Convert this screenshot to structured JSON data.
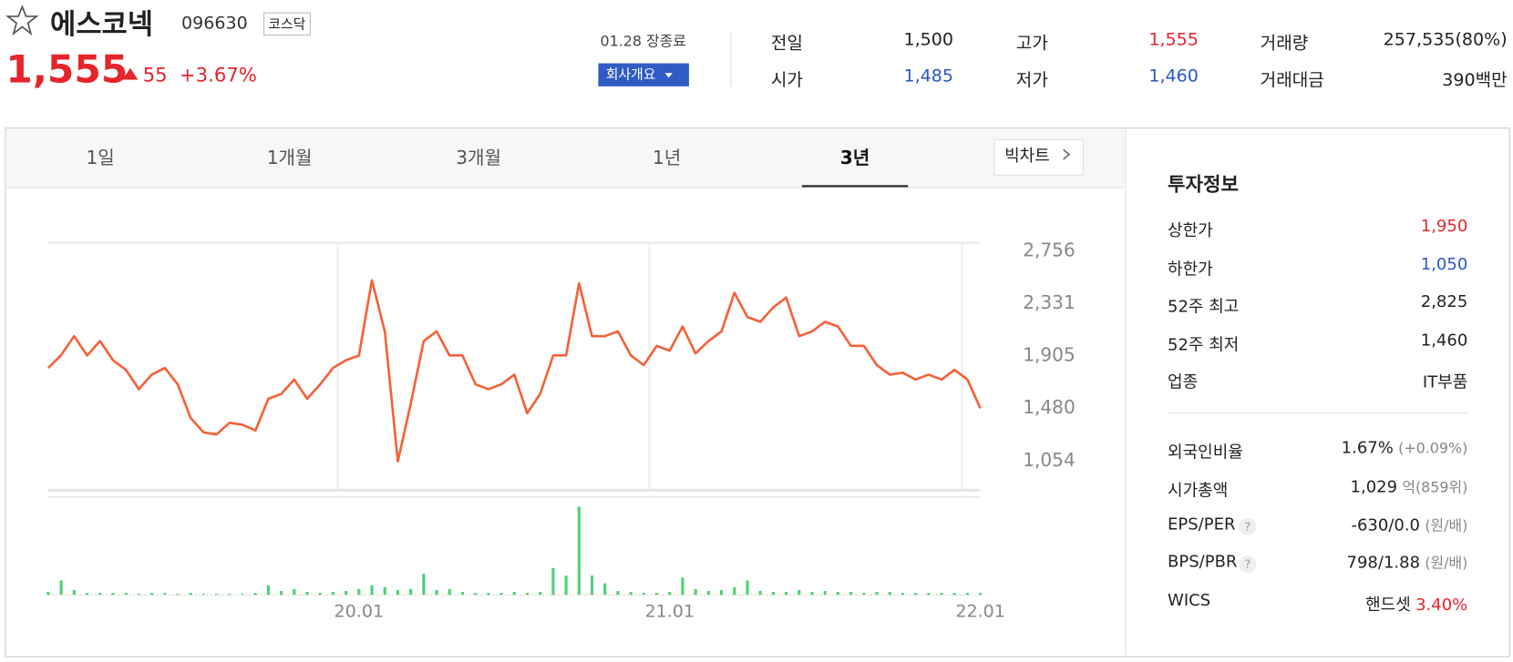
{
  "header": {
    "name": "에스코넥",
    "code": "096630",
    "market": "코스닥",
    "price": "1,555",
    "change": "55",
    "change_pct": "+3.67%",
    "date": "01.28 장종료",
    "company_button": "회사개요"
  },
  "quote": [
    {
      "label": "전일",
      "value": "1,500"
    },
    {
      "label": "고가",
      "value": "1,555"
    },
    {
      "label": "거래량",
      "value": "257,535(80%)"
    },
    {
      "label": "시가",
      "value": "1,485"
    },
    {
      "label": "저가",
      "value": "1,460"
    },
    {
      "label": "거래대금",
      "value": "390백만"
    }
  ],
  "tabs": [
    "1일",
    "1개월",
    "3개월",
    "1년",
    "3년"
  ],
  "big_chart": "빅차트",
  "invest": {
    "title": "투자정보",
    "rows": [
      {
        "label": "상한가",
        "value": "1,950"
      },
      {
        "label": "하한가",
        "value": "1,050"
      },
      {
        "label": "52주 최고",
        "value": "2,825"
      },
      {
        "label": "52주 최저",
        "value": "1,460"
      },
      {
        "label": "업종",
        "value": "IT부품"
      }
    ],
    "rows2": [
      {
        "label": "외국인비율",
        "value": "1.67%",
        "note": "(+0.09%)"
      },
      {
        "label": "시가총액",
        "value": "1,029",
        "note": "억(859위)"
      },
      {
        "label": "EPS/PER",
        "value": "-630/0.0",
        "note": "(원/배)"
      },
      {
        "label": "BPS/PBR",
        "value": "798/1.88",
        "note": "(원/배)"
      },
      {
        "label": "WICS",
        "value": "핸드셋",
        "note": "3.40%"
      }
    ]
  },
  "chart_data": [
    {
      "type": "line",
      "color": "#f4623a",
      "categories": [
        null,
        null,
        null,
        null,
        null,
        null,
        null,
        null,
        null,
        null,
        null,
        null,
        null,
        null,
        null,
        null,
        null,
        null,
        null,
        null,
        null,
        null,
        null,
        null,
        "20.01",
        null,
        null,
        null,
        null,
        null,
        null,
        null,
        null,
        null,
        null,
        null,
        null,
        null,
        null,
        null,
        null,
        null,
        null,
        null,
        null,
        null,
        null,
        null,
        "21.01",
        null,
        null,
        null,
        null,
        null,
        null,
        null,
        null,
        null,
        null,
        null,
        null,
        null,
        null,
        null,
        null,
        null,
        null,
        null,
        null,
        null,
        null,
        null,
        "22.01"
      ],
      "values": [
        1796,
        1900,
        2053,
        1897,
        2014,
        1858,
        1780,
        1624,
        1741,
        1796,
        1663,
        1390,
        1273,
        1257,
        1351,
        1335,
        1288,
        1546,
        1585,
        1702,
        1546,
        1663,
        1796,
        1858,
        1897,
        2506,
        2092,
        1038,
        1507,
        2014,
        2092,
        1897,
        1897,
        1663,
        1624,
        1663,
        1741,
        1429,
        1585,
        1897,
        1897,
        2483,
        2053,
        2053,
        2092,
        1897,
        1819,
        1975,
        1936,
        2131,
        1913,
        2014,
        2092,
        2405,
        2209,
        2170,
        2287,
        2366,
        2053,
        2092,
        2170,
        2131,
        1975,
        1975,
        1819,
        1741,
        1757,
        1702,
        1741,
        1702,
        1780,
        1702,
        1468
      ],
      "ylim": [
        804,
        2811
      ],
      "yticks": [
        {
          "value": 2756,
          "label": "2,756"
        },
        {
          "value": 2331,
          "label": "2,331"
        },
        {
          "value": 1905,
          "label": "1,905"
        },
        {
          "value": 1480,
          "label": "1,480"
        },
        {
          "value": 1054,
          "label": "1,054"
        }
      ]
    },
    {
      "type": "bar",
      "color": "#4fd17a",
      "values": [
        3,
        15,
        5,
        2,
        2,
        2,
        2,
        1,
        2,
        2,
        1,
        2,
        1,
        1,
        1,
        1,
        2,
        10,
        4,
        6,
        3,
        2,
        3,
        4,
        6,
        10,
        8,
        5,
        6,
        22,
        5,
        6,
        3,
        2,
        2,
        2,
        3,
        2,
        3,
        28,
        20,
        92,
        20,
        12,
        4,
        3,
        2,
        2,
        3,
        18,
        6,
        4,
        5,
        8,
        15,
        4,
        3,
        3,
        5,
        3,
        4,
        3,
        3,
        2,
        3,
        3,
        2,
        2,
        2,
        2,
        2,
        2,
        2
      ],
      "ylim": [
        0,
        100
      ]
    }
  ]
}
